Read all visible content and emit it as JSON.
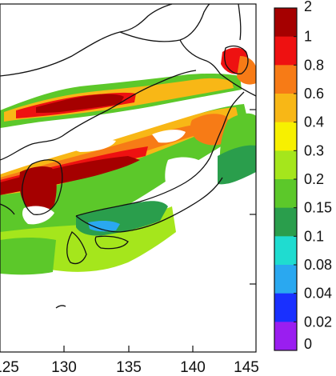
{
  "map": {
    "x_ticks": [
      "125",
      "130",
      "135",
      "140",
      "145"
    ],
    "colors": {
      "ocean": "#ffffff",
      "coast": "#111111"
    }
  },
  "colorbar": {
    "levels": [
      "2",
      "1",
      "0.8",
      "0.6",
      "0.4",
      "0.3",
      "0.2",
      "0.15",
      "0.1",
      "0.08",
      "0.04",
      "0.02",
      "0"
    ],
    "colors": [
      "#a50000",
      "#ee1111",
      "#f77b16",
      "#f8b716",
      "#f7f000",
      "#a5e61c",
      "#5cc82a",
      "#2a9e4c",
      "#1fdcd0",
      "#2aa8f0",
      "#1930ff",
      "#9a1ef0"
    ]
  }
}
